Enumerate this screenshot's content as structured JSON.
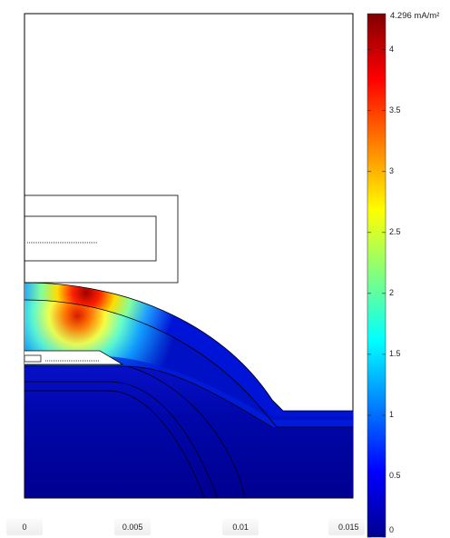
{
  "colorbar": {
    "max_label": "4.296 mA/m²",
    "max_value": 4.296,
    "min_value": 0,
    "ticks": [
      {
        "value": 4,
        "label": "4"
      },
      {
        "value": 3.5,
        "label": "3.5"
      },
      {
        "value": 3,
        "label": "3"
      },
      {
        "value": 2.5,
        "label": "2.5"
      },
      {
        "value": 2,
        "label": "2"
      },
      {
        "value": 1.5,
        "label": "1.5"
      },
      {
        "value": 1,
        "label": "1"
      },
      {
        "value": 0.5,
        "label": "0.5"
      },
      {
        "value": 0,
        "label": "0"
      }
    ],
    "colormap": "jet"
  },
  "x_axis": {
    "ticks": [
      {
        "value": 0,
        "label": "0"
      },
      {
        "value": 0.005,
        "label": "0.005"
      },
      {
        "value": 0.01,
        "label": "0.01"
      },
      {
        "value": 0.015,
        "label": "0.015"
      }
    ]
  },
  "colors": {
    "field_low": "#00008f",
    "field_high": "#800000",
    "outline": "#000000"
  }
}
